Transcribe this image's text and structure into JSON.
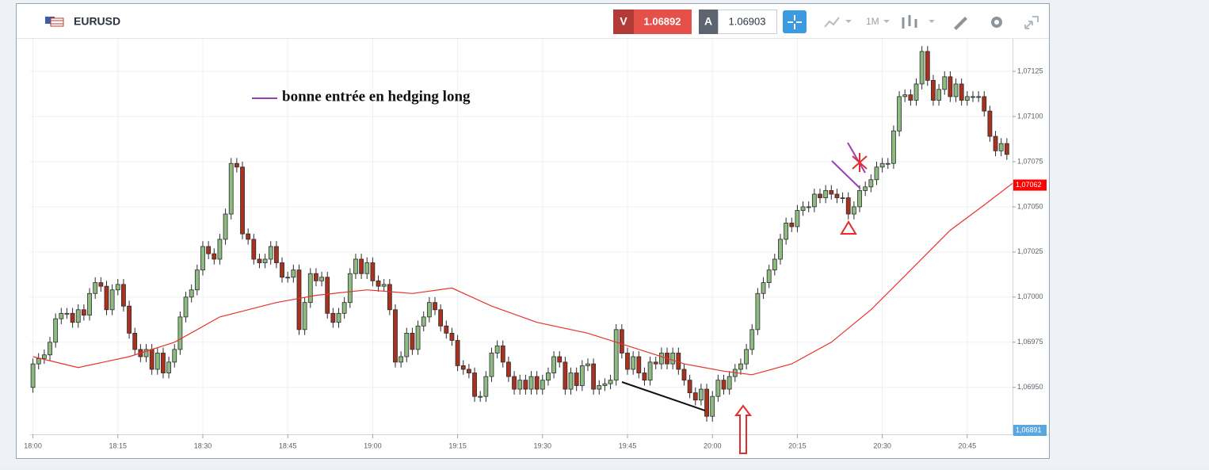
{
  "toolbar": {
    "symbol": "EURUSD",
    "sell_letter": "V",
    "sell_price": "1.06892",
    "buy_letter": "A",
    "buy_price": "1.06903",
    "timeframe": "1M"
  },
  "chart_data": {
    "type": "candlestick",
    "annotation": "bonne entrée en hedging long",
    "up_color": "#8dbb80",
    "down_color": "#a8321f",
    "outline_color": "#2b2b2b",
    "grid": true,
    "xlim": [
      -0.5,
      173
    ],
    "ylim": [
      1.06924,
      1.07143
    ],
    "xticks": [
      {
        "value": 0,
        "label": "18:00"
      },
      {
        "value": 15,
        "label": "18:15"
      },
      {
        "value": 30,
        "label": "18:30"
      },
      {
        "value": 45,
        "label": "18:45"
      },
      {
        "value": 60,
        "label": "19:00"
      },
      {
        "value": 75,
        "label": "19:15"
      },
      {
        "value": 90,
        "label": "19:30"
      },
      {
        "value": 105,
        "label": "19:45"
      },
      {
        "value": 120,
        "label": "20:00"
      },
      {
        "value": 135,
        "label": "20:15"
      },
      {
        "value": 150,
        "label": "20:30"
      },
      {
        "value": 165,
        "label": "20:45"
      }
    ],
    "yticks": [
      {
        "value": 1.0695,
        "label": "1,06950"
      },
      {
        "value": 1.06975,
        "label": "1,06975"
      },
      {
        "value": 1.07,
        "label": "1,07000"
      },
      {
        "value": 1.07025,
        "label": "1,07025"
      },
      {
        "value": 1.0705,
        "label": "1,07050"
      },
      {
        "value": 1.07075,
        "label": "1,07075"
      },
      {
        "value": 1.071,
        "label": "1,07100"
      },
      {
        "value": 1.07125,
        "label": "1,07125"
      }
    ],
    "price_tag": {
      "value": 1.07062,
      "label": "1,07062",
      "color": "#ff0000"
    },
    "bottom_tag": {
      "label": "1,06891",
      "color": "#5aa7e0"
    },
    "ma": {
      "color": "#e8322c",
      "x": [
        0,
        8,
        17,
        25,
        33,
        43,
        50,
        59,
        67,
        74,
        81,
        89,
        98,
        106,
        115,
        122,
        127,
        134,
        141,
        148,
        155,
        162,
        168,
        173
      ],
      "values": [
        1.06967,
        1.06961,
        1.06967,
        1.06975,
        1.06989,
        1.06997,
        1.07001,
        1.07004,
        1.07002,
        1.07005,
        1.06995,
        1.06986,
        1.0698,
        1.06972,
        1.06963,
        1.06959,
        1.06957,
        1.06963,
        1.06975,
        1.06993,
        1.07015,
        1.07037,
        1.07051,
        1.07063
      ]
    },
    "x": [
      0,
      1,
      2,
      3,
      4,
      5,
      6,
      7,
      8,
      9,
      10,
      11,
      12,
      13,
      14,
      15,
      16,
      17,
      18,
      19,
      20,
      21,
      22,
      23,
      24,
      25,
      26,
      27,
      28,
      29,
      30,
      31,
      32,
      33,
      34,
      35,
      36,
      37,
      38,
      39,
      40,
      41,
      42,
      43,
      44,
      45,
      46,
      47,
      48,
      49,
      50,
      51,
      52,
      53,
      54,
      55,
      56,
      57,
      58,
      59,
      60,
      61,
      62,
      63,
      64,
      65,
      66,
      67,
      68,
      69,
      70,
      71,
      72,
      73,
      74,
      75,
      76,
      77,
      78,
      79,
      80,
      81,
      82,
      83,
      84,
      85,
      86,
      87,
      88,
      89,
      90,
      91,
      92,
      93,
      94,
      95,
      96,
      97,
      98,
      99,
      100,
      101,
      102,
      103,
      104,
      105,
      106,
      107,
      108,
      109,
      110,
      111,
      112,
      113,
      114,
      115,
      116,
      117,
      118,
      119,
      120,
      121,
      122,
      123,
      124,
      125,
      126,
      127,
      128,
      129,
      130,
      131,
      132,
      133,
      134,
      135,
      136,
      137,
      138,
      139,
      140,
      141,
      142,
      143,
      144,
      145,
      146,
      147,
      148,
      149,
      150,
      151,
      152,
      153,
      154,
      155,
      156,
      157,
      158,
      159,
      160,
      161,
      162,
      163,
      164,
      165,
      166,
      167,
      168,
      169,
      170,
      171,
      172
    ],
    "ohlc": [
      [
        1.0695,
        1.06966,
        1.06947,
        1.06963
      ],
      [
        1.06963,
        1.06969,
        1.0696,
        1.06966
      ],
      [
        1.06966,
        1.06971,
        1.06963,
        1.06968
      ],
      [
        1.06968,
        1.06978,
        1.06965,
        1.06975
      ],
      [
        1.06975,
        1.06991,
        1.06972,
        1.06988
      ],
      [
        1.06988,
        1.06994,
        1.06985,
        1.06991
      ],
      [
        1.06991,
        1.06994,
        1.06988,
        1.06991
      ],
      [
        1.06991,
        1.06994,
        1.06983,
        1.06986
      ],
      [
        1.06986,
        1.06996,
        1.06983,
        1.06993
      ],
      [
        1.06993,
        1.06996,
        1.06987,
        1.0699
      ],
      [
        1.0699,
        1.07005,
        1.06987,
        1.07002
      ],
      [
        1.07002,
        1.07011,
        1.06999,
        1.07008
      ],
      [
        1.07008,
        1.07011,
        1.07003,
        1.07006
      ],
      [
        1.07006,
        1.07009,
        1.0699,
        1.06993
      ],
      [
        1.06993,
        1.07007,
        1.0699,
        1.07004
      ],
      [
        1.07004,
        1.0701,
        1.07001,
        1.07007
      ],
      [
        1.07007,
        1.0701,
        1.06992,
        1.06995
      ],
      [
        1.06995,
        1.06998,
        1.06977,
        1.0698
      ],
      [
        1.0698,
        1.06983,
        1.06968,
        1.06971
      ],
      [
        1.06971,
        1.06974,
        1.06964,
        1.06967
      ],
      [
        1.06967,
        1.06974,
        1.06964,
        1.06971
      ],
      [
        1.06971,
        1.06974,
        1.06957,
        1.0696
      ],
      [
        1.0696,
        1.06972,
        1.06957,
        1.06969
      ],
      [
        1.06969,
        1.06972,
        1.06955,
        1.06958
      ],
      [
        1.06958,
        1.06967,
        1.06955,
        1.06964
      ],
      [
        1.06964,
        1.06974,
        1.06961,
        1.06971
      ],
      [
        1.06971,
        1.06992,
        1.06968,
        1.06989
      ],
      [
        1.06989,
        1.07003,
        1.06986,
        1.07
      ],
      [
        1.07,
        1.07007,
        1.06997,
        1.07004
      ],
      [
        1.07004,
        1.07018,
        1.07001,
        1.07015
      ],
      [
        1.07015,
        1.07031,
        1.07012,
        1.07028
      ],
      [
        1.07028,
        1.07031,
        1.07021,
        1.07024
      ],
      [
        1.07024,
        1.07027,
        1.07018,
        1.07021
      ],
      [
        1.07021,
        1.07035,
        1.07018,
        1.07032
      ],
      [
        1.07032,
        1.07049,
        1.07029,
        1.07046
      ],
      [
        1.07046,
        1.07077,
        1.07043,
        1.07074
      ],
      [
        1.07074,
        1.07077,
        1.07069,
        1.07072
      ],
      [
        1.07072,
        1.07075,
        1.07032,
        1.07035
      ],
      [
        1.07035,
        1.07038,
        1.07029,
        1.07032
      ],
      [
        1.07032,
        1.07035,
        1.07018,
        1.07021
      ],
      [
        1.07021,
        1.07024,
        1.07016,
        1.07019
      ],
      [
        1.07019,
        1.07024,
        1.07016,
        1.07021
      ],
      [
        1.07021,
        1.07031,
        1.07018,
        1.07028
      ],
      [
        1.07028,
        1.07031,
        1.07016,
        1.07019
      ],
      [
        1.07019,
        1.07022,
        1.07008,
        1.07011
      ],
      [
        1.07011,
        1.07014,
        1.07008,
        1.07011
      ],
      [
        1.07011,
        1.07018,
        1.07008,
        1.07015
      ],
      [
        1.07015,
        1.07018,
        1.06979,
        1.06982
      ],
      [
        1.06982,
        1.07,
        1.06979,
        1.06997
      ],
      [
        1.06997,
        1.07016,
        1.06994,
        1.07013
      ],
      [
        1.07013,
        1.07016,
        1.07006,
        1.07009
      ],
      [
        1.07009,
        1.07014,
        1.07006,
        1.07011
      ],
      [
        1.07011,
        1.07014,
        1.06988,
        1.06991
      ],
      [
        1.06991,
        1.06994,
        1.06983,
        1.06986
      ],
      [
        1.06986,
        1.06994,
        1.06983,
        1.06991
      ],
      [
        1.06991,
        1.07,
        1.06988,
        1.06997
      ],
      [
        1.06997,
        1.07016,
        1.06994,
        1.07013
      ],
      [
        1.07013,
        1.07024,
        1.0701,
        1.07021
      ],
      [
        1.07021,
        1.07024,
        1.0701,
        1.07013
      ],
      [
        1.07013,
        1.07022,
        1.0701,
        1.07019
      ],
      [
        1.07019,
        1.07022,
        1.07006,
        1.07009
      ],
      [
        1.07009,
        1.07012,
        1.07003,
        1.07006
      ],
      [
        1.07006,
        1.0701,
        1.07003,
        1.07007
      ],
      [
        1.07007,
        1.0701,
        1.0699,
        1.06993
      ],
      [
        1.06993,
        1.06996,
        1.06961,
        1.06964
      ],
      [
        1.06964,
        1.0697,
        1.06961,
        1.06967
      ],
      [
        1.06967,
        1.06983,
        1.06964,
        1.0698
      ],
      [
        1.0698,
        1.06983,
        1.06968,
        1.06971
      ],
      [
        1.06971,
        1.06987,
        1.06968,
        1.06984
      ],
      [
        1.06984,
        1.06992,
        1.06981,
        1.06989
      ],
      [
        1.06989,
        1.07,
        1.06986,
        1.06997
      ],
      [
        1.06997,
        1.07,
        1.0699,
        1.06993
      ],
      [
        1.06993,
        1.06996,
        1.06981,
        1.06984
      ],
      [
        1.06984,
        1.06987,
        1.06977,
        1.0698
      ],
      [
        1.0698,
        1.06983,
        1.06973,
        1.06976
      ],
      [
        1.06976,
        1.06979,
        1.06959,
        1.06962
      ],
      [
        1.06962,
        1.06965,
        1.06957,
        1.0696
      ],
      [
        1.0696,
        1.06963,
        1.06955,
        1.06958
      ],
      [
        1.06958,
        1.06961,
        1.06942,
        1.06945
      ],
      [
        1.06945,
        1.06948,
        1.06942,
        1.06945
      ],
      [
        1.06945,
        1.06959,
        1.06942,
        1.06956
      ],
      [
        1.06956,
        1.06972,
        1.06953,
        1.06969
      ],
      [
        1.06969,
        1.06976,
        1.06966,
        1.06973
      ],
      [
        1.06973,
        1.06976,
        1.06961,
        1.06964
      ],
      [
        1.06964,
        1.06967,
        1.06953,
        1.06956
      ],
      [
        1.06956,
        1.06959,
        1.06946,
        1.06949
      ],
      [
        1.06949,
        1.06957,
        1.06946,
        1.06954
      ],
      [
        1.06954,
        1.06957,
        1.06946,
        1.06949
      ],
      [
        1.06949,
        1.06959,
        1.06946,
        1.06956
      ],
      [
        1.06956,
        1.06959,
        1.06946,
        1.06949
      ],
      [
        1.06949,
        1.06957,
        1.06946,
        1.06954
      ],
      [
        1.06954,
        1.06961,
        1.06951,
        1.06958
      ],
      [
        1.06958,
        1.0697,
        1.06955,
        1.06967
      ],
      [
        1.06967,
        1.0697,
        1.06961,
        1.06964
      ],
      [
        1.06964,
        1.06967,
        1.06946,
        1.06949
      ],
      [
        1.06949,
        1.06961,
        1.06946,
        1.06958
      ],
      [
        1.06958,
        1.06961,
        1.06948,
        1.06951
      ],
      [
        1.06951,
        1.06965,
        1.06948,
        1.06962
      ],
      [
        1.06962,
        1.06966,
        1.06959,
        1.06963
      ],
      [
        1.06963,
        1.06966,
        1.06946,
        1.06949
      ],
      [
        1.06949,
        1.06954,
        1.06946,
        1.06951
      ],
      [
        1.06951,
        1.06955,
        1.06948,
        1.06952
      ],
      [
        1.06952,
        1.06957,
        1.06949,
        1.06954
      ],
      [
        1.06954,
        1.06985,
        1.06951,
        1.06982
      ],
      [
        1.06982,
        1.06985,
        1.06966,
        1.06969
      ],
      [
        1.06969,
        1.06972,
        1.06957,
        1.0696
      ],
      [
        1.0696,
        1.0697,
        1.06957,
        1.06967
      ],
      [
        1.06967,
        1.0697,
        1.06955,
        1.06958
      ],
      [
        1.06958,
        1.06961,
        1.06951,
        1.06954
      ],
      [
        1.06954,
        1.06967,
        1.06951,
        1.06964
      ],
      [
        1.06964,
        1.06967,
        1.0696,
        1.06963
      ],
      [
        1.06963,
        1.06972,
        1.0696,
        1.06969
      ],
      [
        1.06969,
        1.06972,
        1.0696,
        1.06963
      ],
      [
        1.06963,
        1.06972,
        1.0696,
        1.06969
      ],
      [
        1.06969,
        1.06972,
        1.06957,
        1.0696
      ],
      [
        1.0696,
        1.06963,
        1.06951,
        1.06954
      ],
      [
        1.06954,
        1.06957,
        1.06944,
        1.06947
      ],
      [
        1.06947,
        1.0695,
        1.0694,
        1.06943
      ],
      [
        1.06943,
        1.06952,
        1.0694,
        1.06949
      ],
      [
        1.06949,
        1.06952,
        1.06931,
        1.06934
      ],
      [
        1.06934,
        1.06948,
        1.06931,
        1.06945
      ],
      [
        1.06945,
        1.06957,
        1.06942,
        1.06954
      ],
      [
        1.06954,
        1.06957,
        1.06946,
        1.06949
      ],
      [
        1.06949,
        1.06959,
        1.06946,
        1.06956
      ],
      [
        1.06956,
        1.06963,
        1.06953,
        1.0696
      ],
      [
        1.0696,
        1.06966,
        1.06957,
        1.06963
      ],
      [
        1.06963,
        1.06974,
        1.0696,
        1.06971
      ],
      [
        1.06971,
        1.06985,
        1.06968,
        1.06982
      ],
      [
        1.06982,
        1.07005,
        1.06979,
        1.07002
      ],
      [
        1.07002,
        1.07011,
        1.06999,
        1.07008
      ],
      [
        1.07008,
        1.07018,
        1.07005,
        1.07015
      ],
      [
        1.07015,
        1.07024,
        1.07012,
        1.07021
      ],
      [
        1.07021,
        1.07035,
        1.07018,
        1.07032
      ],
      [
        1.07032,
        1.07044,
        1.07029,
        1.07041
      ],
      [
        1.07041,
        1.07044,
        1.07036,
        1.07039
      ],
      [
        1.07039,
        1.07051,
        1.07036,
        1.07048
      ],
      [
        1.07048,
        1.07053,
        1.07045,
        1.0705
      ],
      [
        1.0705,
        1.07053,
        1.07047,
        1.0705
      ],
      [
        1.0705,
        1.0706,
        1.07047,
        1.07057
      ],
      [
        1.07057,
        1.0706,
        1.07052,
        1.07055
      ],
      [
        1.07055,
        1.07062,
        1.07052,
        1.07059
      ],
      [
        1.07059,
        1.07062,
        1.07054,
        1.07057
      ],
      [
        1.07057,
        1.0706,
        1.07052,
        1.07055
      ],
      [
        1.07055,
        1.07058,
        1.07052,
        1.07055
      ],
      [
        1.07055,
        1.07058,
        1.07043,
        1.07046
      ],
      [
        1.07046,
        1.07053,
        1.07043,
        1.0705
      ],
      [
        1.0705,
        1.07062,
        1.07047,
        1.07059
      ],
      [
        1.07059,
        1.07064,
        1.07056,
        1.07061
      ],
      [
        1.07061,
        1.07068,
        1.07058,
        1.07065
      ],
      [
        1.07065,
        1.07075,
        1.07062,
        1.07072
      ],
      [
        1.07072,
        1.07077,
        1.07069,
        1.07074
      ],
      [
        1.07074,
        1.07077,
        1.07071,
        1.07074
      ],
      [
        1.07074,
        1.07095,
        1.07071,
        1.07092
      ],
      [
        1.07092,
        1.07114,
        1.07089,
        1.07111
      ],
      [
        1.07111,
        1.07115,
        1.07108,
        1.07112
      ],
      [
        1.07112,
        1.07115,
        1.07106,
        1.07109
      ],
      [
        1.07109,
        1.07121,
        1.07106,
        1.07118
      ],
      [
        1.07118,
        1.07139,
        1.07115,
        1.07136
      ],
      [
        1.07136,
        1.07139,
        1.07117,
        1.0712
      ],
      [
        1.0712,
        1.07123,
        1.07106,
        1.07109
      ],
      [
        1.07109,
        1.07118,
        1.07106,
        1.07115
      ],
      [
        1.07115,
        1.07125,
        1.07112,
        1.07122
      ],
      [
        1.07122,
        1.07125,
        1.07108,
        1.07111
      ],
      [
        1.07111,
        1.07121,
        1.07108,
        1.07118
      ],
      [
        1.07118,
        1.07121,
        1.07106,
        1.07109
      ],
      [
        1.07109,
        1.07114,
        1.07106,
        1.07111
      ],
      [
        1.07111,
        1.07114,
        1.07108,
        1.07111
      ],
      [
        1.07111,
        1.07114,
        1.07108,
        1.07111
      ],
      [
        1.07111,
        1.07114,
        1.071,
        1.07103
      ],
      [
        1.07103,
        1.07106,
        1.07086,
        1.07089
      ],
      [
        1.07089,
        1.07092,
        1.07078,
        1.07081
      ],
      [
        1.07081,
        1.07088,
        1.07078,
        1.07085
      ],
      [
        1.07085,
        1.07088,
        1.07076,
        1.07079
      ]
    ]
  }
}
